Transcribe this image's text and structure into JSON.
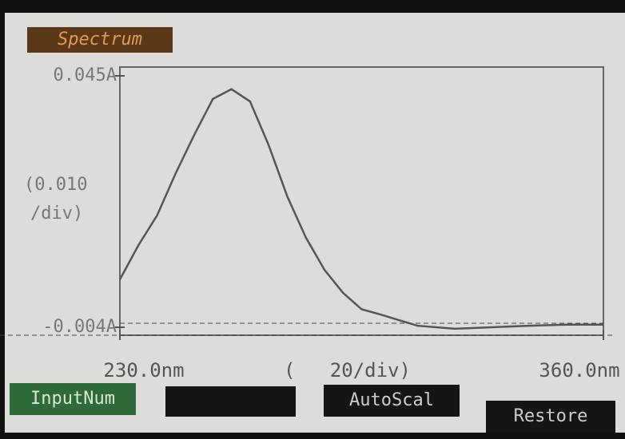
{
  "chart_data": {
    "type": "line",
    "title": "Spectrum",
    "x": [
      230,
      235,
      240,
      245,
      250,
      255,
      260,
      265,
      270,
      275,
      280,
      285,
      290,
      295,
      300,
      310,
      320,
      330,
      340,
      350,
      360
    ],
    "values": [
      0.0053,
      0.012,
      0.0178,
      0.026,
      0.0335,
      0.0405,
      0.0424,
      0.04,
      0.0315,
      0.0215,
      0.0135,
      0.0072,
      0.0027,
      -0.0005,
      -0.0015,
      -0.0037,
      -0.0043,
      -0.004,
      -0.0037,
      -0.0035,
      -0.0035
    ],
    "color": "#555555",
    "xlim": [
      230,
      360
    ],
    "xticks": [
      {
        "value": 230,
        "label": "230.0nm"
      },
      {
        "value": 360,
        "label": "360.0nm"
      }
    ],
    "ylim": [
      -0.004,
      0.045
    ],
    "yticks": [
      {
        "value": -0.004,
        "label": "-0.004A"
      },
      {
        "value": 0.045,
        "label": "0.045A"
      }
    ],
    "y_division": [
      "(0.010",
      "/div)"
    ],
    "x_division": "(   20/div)"
  },
  "buttons": [
    "InputNum",
    "AutoScal",
    "Restore"
  ]
}
